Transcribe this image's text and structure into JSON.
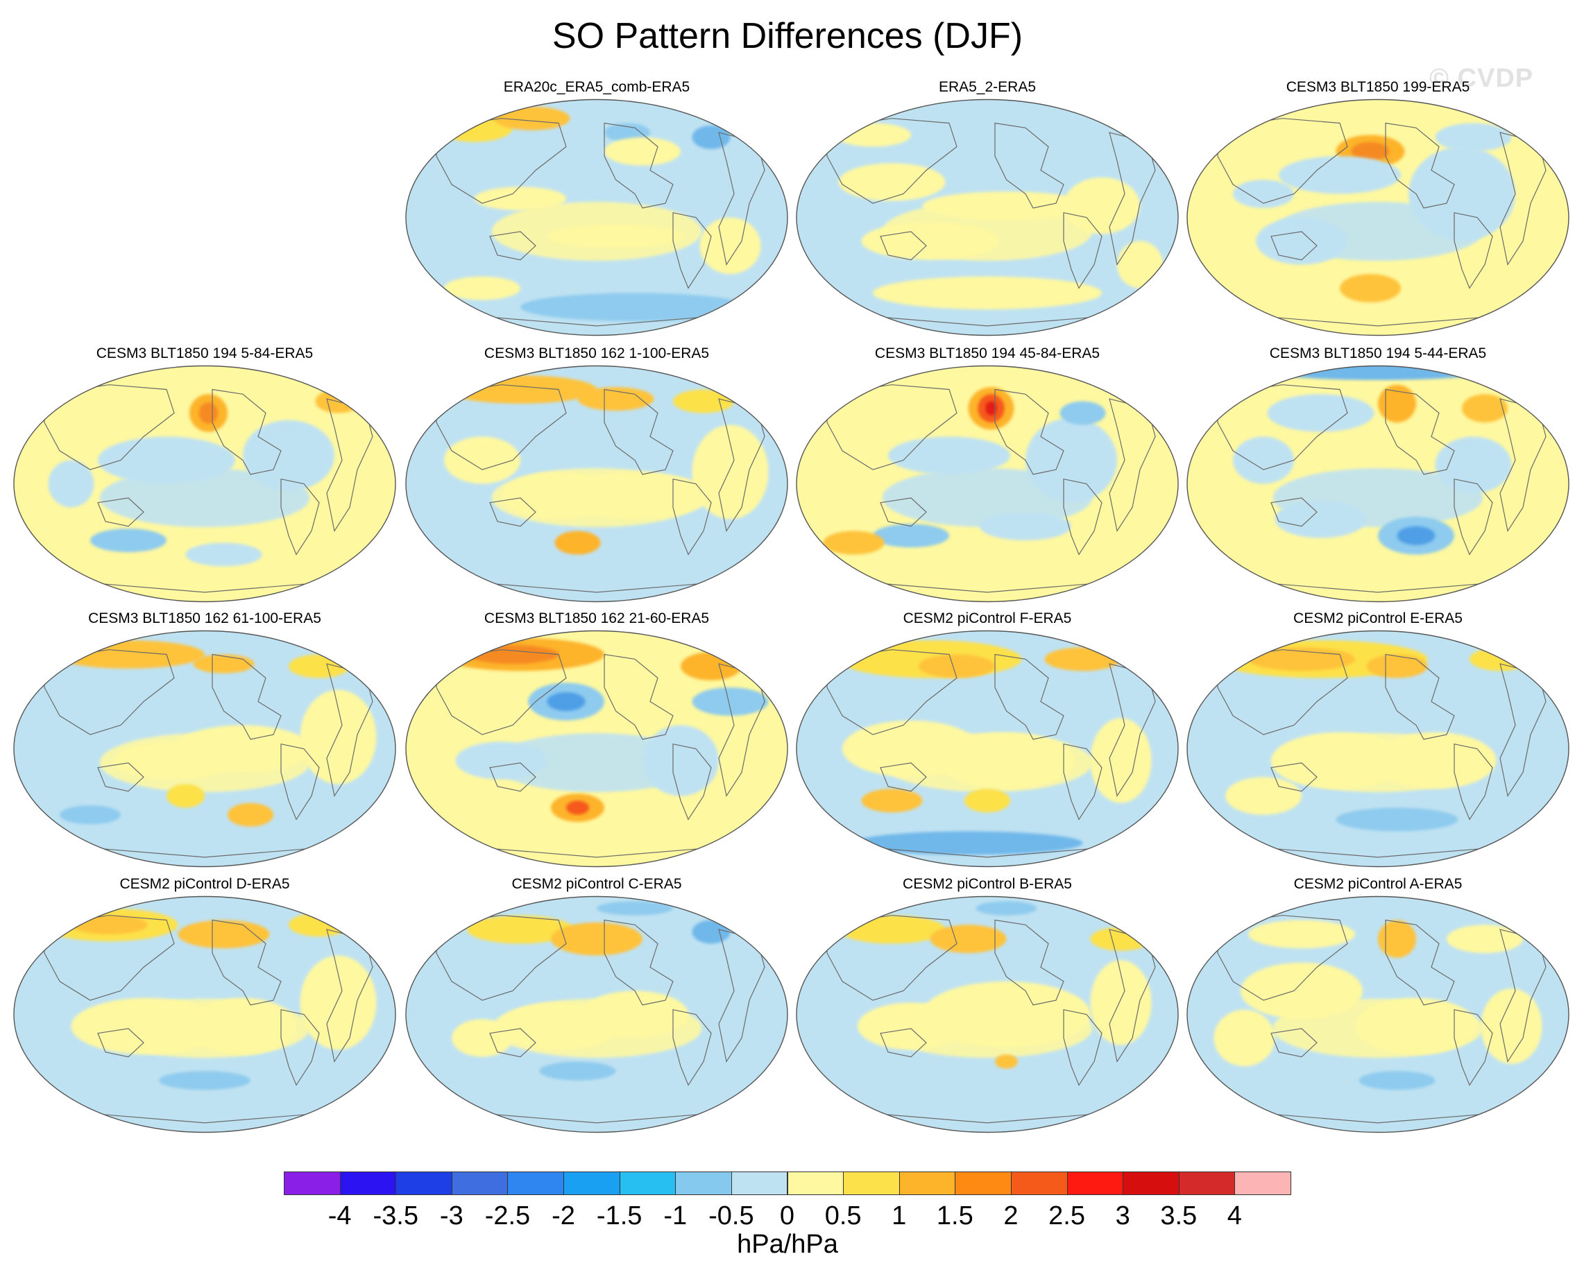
{
  "figure": {
    "title": "SO Pattern Differences (DJF)",
    "watermark": "© CVDP"
  },
  "colors": {
    "ocean_outline": "#555555",
    "land_outline": "#6b6b6b",
    "neutral_negative": "#bfe2f2",
    "neutral_positive": "#fef8a0"
  },
  "panels": [
    {
      "title": "ERA20c_ERA5_comb-ERA5",
      "base": "negative",
      "blobs": [
        [
          0.18,
          0.12,
          0.1,
          0.06,
          "#fde14a"
        ],
        [
          0.33,
          0.08,
          0.1,
          0.05,
          "#fec23a"
        ],
        [
          0.58,
          0.14,
          0.06,
          0.04,
          "#8ecbee"
        ],
        [
          0.8,
          0.16,
          0.05,
          0.05,
          "#6fb7ea"
        ],
        [
          0.3,
          0.42,
          0.12,
          0.05,
          "#fef8a0"
        ],
        [
          0.55,
          0.58,
          0.18,
          0.05,
          "#fef8a0"
        ],
        [
          0.85,
          0.62,
          0.08,
          0.12,
          "#fef8a0"
        ],
        [
          0.6,
          0.88,
          0.3,
          0.06,
          "#8ecbee"
        ],
        [
          0.2,
          0.8,
          0.1,
          0.05,
          "#fef8a0"
        ],
        [
          0.62,
          0.22,
          0.1,
          0.06,
          "#fef8a0"
        ]
      ]
    },
    {
      "title": "ERA5_2-ERA5",
      "base": "negative",
      "blobs": [
        [
          0.25,
          0.35,
          0.14,
          0.08,
          "#fef8a0"
        ],
        [
          0.55,
          0.45,
          0.22,
          0.06,
          "#fef8a0"
        ],
        [
          0.35,
          0.6,
          0.18,
          0.08,
          "#fef8a0"
        ],
        [
          0.8,
          0.45,
          0.1,
          0.12,
          "#fef8a0"
        ],
        [
          0.5,
          0.82,
          0.3,
          0.07,
          "#fef8a0"
        ],
        [
          0.2,
          0.15,
          0.1,
          0.05,
          "#fef8a0"
        ],
        [
          0.9,
          0.7,
          0.06,
          0.1,
          "#fef8a0"
        ]
      ]
    },
    {
      "title": "CESM3 BLT1850 199-ERA5",
      "base": "positive",
      "blobs": [
        [
          0.48,
          0.22,
          0.09,
          0.07,
          "#fdb32a"
        ],
        [
          0.48,
          0.22,
          0.05,
          0.04,
          "#f58a20"
        ],
        [
          0.4,
          0.32,
          0.16,
          0.08,
          "#bfe2f2"
        ],
        [
          0.72,
          0.4,
          0.14,
          0.2,
          "#bfe2f2"
        ],
        [
          0.3,
          0.6,
          0.12,
          0.1,
          "#bfe2f2"
        ],
        [
          0.48,
          0.8,
          0.08,
          0.06,
          "#fec23a"
        ],
        [
          0.75,
          0.16,
          0.1,
          0.06,
          "#bfe2f2"
        ],
        [
          0.2,
          0.4,
          0.08,
          0.06,
          "#bfe2f2"
        ]
      ]
    },
    {
      "title": "CESM3 BLT1850 194 5-84-ERA5",
      "base": "positive",
      "blobs": [
        [
          0.51,
          0.2,
          0.05,
          0.08,
          "#fdb32a"
        ],
        [
          0.51,
          0.2,
          0.025,
          0.045,
          "#f58a20"
        ],
        [
          0.4,
          0.4,
          0.18,
          0.1,
          "#bfe2f2"
        ],
        [
          0.72,
          0.38,
          0.12,
          0.15,
          "#bfe2f2"
        ],
        [
          0.3,
          0.74,
          0.1,
          0.05,
          "#8ecbee"
        ],
        [
          0.55,
          0.8,
          0.1,
          0.05,
          "#bfe2f2"
        ],
        [
          0.15,
          0.5,
          0.06,
          0.1,
          "#bfe2f2"
        ],
        [
          0.85,
          0.15,
          0.06,
          0.05,
          "#fec23a"
        ]
      ]
    },
    {
      "title": "CESM3 BLT1850 162 1-100-ERA5",
      "base": "negative",
      "blobs": [
        [
          0.3,
          0.1,
          0.2,
          0.06,
          "#fec23a"
        ],
        [
          0.55,
          0.14,
          0.1,
          0.05,
          "#fec23a"
        ],
        [
          0.78,
          0.15,
          0.08,
          0.05,
          "#fde14a"
        ],
        [
          0.4,
          0.55,
          0.15,
          0.1,
          "#fef8a0"
        ],
        [
          0.6,
          0.55,
          0.2,
          0.1,
          "#fef8a0"
        ],
        [
          0.45,
          0.75,
          0.06,
          0.05,
          "#fdb32a"
        ],
        [
          0.85,
          0.45,
          0.1,
          0.2,
          "#fef8a0"
        ],
        [
          0.2,
          0.4,
          0.1,
          0.1,
          "#fef8a0"
        ]
      ]
    },
    {
      "title": "CESM3 BLT1850 194 45-84-ERA5",
      "base": "positive",
      "blobs": [
        [
          0.51,
          0.18,
          0.06,
          0.09,
          "#fdb32a"
        ],
        [
          0.51,
          0.18,
          0.035,
          0.06,
          "#f55a1a"
        ],
        [
          0.51,
          0.18,
          0.015,
          0.03,
          "#e31b12"
        ],
        [
          0.4,
          0.38,
          0.16,
          0.08,
          "#bfe2f2"
        ],
        [
          0.72,
          0.4,
          0.12,
          0.18,
          "#bfe2f2"
        ],
        [
          0.3,
          0.72,
          0.1,
          0.05,
          "#8ecbee"
        ],
        [
          0.6,
          0.68,
          0.12,
          0.06,
          "#bfe2f2"
        ],
        [
          0.75,
          0.2,
          0.06,
          0.05,
          "#8ecbee"
        ],
        [
          0.15,
          0.75,
          0.08,
          0.05,
          "#fec23a"
        ]
      ]
    },
    {
      "title": "CESM3 BLT1850 194 5-44-ERA5",
      "base": "positive",
      "blobs": [
        [
          0.5,
          0.02,
          0.3,
          0.04,
          "#6fb7ea"
        ],
        [
          0.35,
          0.2,
          0.14,
          0.08,
          "#bfe2f2"
        ],
        [
          0.55,
          0.16,
          0.05,
          0.08,
          "#fdb32a"
        ],
        [
          0.78,
          0.18,
          0.06,
          0.06,
          "#fec23a"
        ],
        [
          0.6,
          0.72,
          0.1,
          0.08,
          "#8ecbee"
        ],
        [
          0.6,
          0.72,
          0.05,
          0.04,
          "#4f9fe6"
        ],
        [
          0.35,
          0.65,
          0.12,
          0.08,
          "#bfe2f2"
        ],
        [
          0.75,
          0.42,
          0.1,
          0.12,
          "#bfe2f2"
        ],
        [
          0.2,
          0.4,
          0.08,
          0.1,
          "#bfe2f2"
        ]
      ]
    },
    {
      "title": "CESM3 BLT1850 162 61-100-ERA5",
      "base": "negative",
      "blobs": [
        [
          0.3,
          0.1,
          0.2,
          0.06,
          "#fec23a"
        ],
        [
          0.55,
          0.14,
          0.08,
          0.04,
          "#fec23a"
        ],
        [
          0.8,
          0.15,
          0.08,
          0.05,
          "#fde14a"
        ],
        [
          0.42,
          0.55,
          0.16,
          0.08,
          "#fef8a0"
        ],
        [
          0.6,
          0.5,
          0.18,
          0.1,
          "#fef8a0"
        ],
        [
          0.45,
          0.7,
          0.05,
          0.05,
          "#fde14a"
        ],
        [
          0.62,
          0.78,
          0.06,
          0.05,
          "#fec23a"
        ],
        [
          0.2,
          0.78,
          0.08,
          0.04,
          "#8ecbee"
        ],
        [
          0.85,
          0.45,
          0.1,
          0.2,
          "#fef8a0"
        ]
      ]
    },
    {
      "title": "CESM3 BLT1850 162 21-60-ERA5",
      "base": "positive",
      "blobs": [
        [
          0.3,
          0.1,
          0.22,
          0.07,
          "#fdb32a"
        ],
        [
          0.28,
          0.1,
          0.12,
          0.04,
          "#f58a20"
        ],
        [
          0.42,
          0.3,
          0.1,
          0.08,
          "#8ecbee"
        ],
        [
          0.42,
          0.3,
          0.05,
          0.04,
          "#4f9fe6"
        ],
        [
          0.8,
          0.15,
          0.08,
          0.06,
          "#fdb32a"
        ],
        [
          0.85,
          0.3,
          0.1,
          0.06,
          "#8ecbee"
        ],
        [
          0.45,
          0.75,
          0.07,
          0.06,
          "#fdb32a"
        ],
        [
          0.45,
          0.75,
          0.03,
          0.03,
          "#f55a1a"
        ],
        [
          0.25,
          0.55,
          0.12,
          0.08,
          "#bfe2f2"
        ],
        [
          0.72,
          0.55,
          0.1,
          0.15,
          "#bfe2f2"
        ]
      ]
    },
    {
      "title": "CESM2 piControl F-ERA5",
      "base": "negative",
      "blobs": [
        [
          0.35,
          0.12,
          0.24,
          0.08,
          "#fde14a"
        ],
        [
          0.42,
          0.15,
          0.1,
          0.05,
          "#fec23a"
        ],
        [
          0.75,
          0.12,
          0.1,
          0.05,
          "#fec23a"
        ],
        [
          0.3,
          0.5,
          0.18,
          0.12,
          "#fef8a0"
        ],
        [
          0.55,
          0.55,
          0.18,
          0.12,
          "#fef8a0"
        ],
        [
          0.25,
          0.72,
          0.08,
          0.05,
          "#fec23a"
        ],
        [
          0.5,
          0.72,
          0.06,
          0.05,
          "#fde14a"
        ],
        [
          0.45,
          0.9,
          0.3,
          0.05,
          "#6fb7ea"
        ],
        [
          0.85,
          0.55,
          0.08,
          0.18,
          "#fef8a0"
        ]
      ]
    },
    {
      "title": "CESM2 piControl E-ERA5",
      "base": "negative",
      "blobs": [
        [
          0.35,
          0.12,
          0.28,
          0.08,
          "#fde14a"
        ],
        [
          0.3,
          0.12,
          0.14,
          0.05,
          "#fec23a"
        ],
        [
          0.55,
          0.15,
          0.08,
          0.05,
          "#fec23a"
        ],
        [
          0.82,
          0.12,
          0.08,
          0.05,
          "#fde14a"
        ],
        [
          0.4,
          0.55,
          0.18,
          0.12,
          "#fef8a0"
        ],
        [
          0.65,
          0.55,
          0.16,
          0.12,
          "#fef8a0"
        ],
        [
          0.55,
          0.8,
          0.16,
          0.05,
          "#8ecbee"
        ],
        [
          0.2,
          0.7,
          0.1,
          0.08,
          "#fef8a0"
        ]
      ]
    },
    {
      "title": "CESM2 piControl D-ERA5",
      "base": "negative",
      "blobs": [
        [
          0.25,
          0.12,
          0.18,
          0.07,
          "#fde14a"
        ],
        [
          0.25,
          0.12,
          0.1,
          0.04,
          "#fec23a"
        ],
        [
          0.55,
          0.16,
          0.12,
          0.06,
          "#fec23a"
        ],
        [
          0.8,
          0.12,
          0.08,
          0.05,
          "#fde14a"
        ],
        [
          0.35,
          0.55,
          0.2,
          0.12,
          "#fef8a0"
        ],
        [
          0.6,
          0.55,
          0.14,
          0.12,
          "#fef8a0"
        ],
        [
          0.5,
          0.78,
          0.12,
          0.04,
          "#8ecbee"
        ],
        [
          0.85,
          0.45,
          0.1,
          0.2,
          "#fef8a0"
        ]
      ]
    },
    {
      "title": "CESM2 piControl C-ERA5",
      "base": "negative",
      "blobs": [
        [
          0.3,
          0.14,
          0.14,
          0.06,
          "#fde14a"
        ],
        [
          0.5,
          0.18,
          0.12,
          0.07,
          "#fec23a"
        ],
        [
          0.6,
          0.05,
          0.1,
          0.03,
          "#8ecbee"
        ],
        [
          0.8,
          0.15,
          0.05,
          0.05,
          "#6fb7ea"
        ],
        [
          0.4,
          0.55,
          0.16,
          0.1,
          "#fef8a0"
        ],
        [
          0.6,
          0.5,
          0.14,
          0.1,
          "#fef8a0"
        ],
        [
          0.45,
          0.74,
          0.1,
          0.04,
          "#8ecbee"
        ],
        [
          0.2,
          0.6,
          0.08,
          0.08,
          "#fef8a0"
        ]
      ]
    },
    {
      "title": "CESM2 piControl B-ERA5",
      "base": "negative",
      "blobs": [
        [
          0.25,
          0.14,
          0.14,
          0.06,
          "#fde14a"
        ],
        [
          0.45,
          0.18,
          0.1,
          0.06,
          "#fec23a"
        ],
        [
          0.55,
          0.05,
          0.08,
          0.03,
          "#8ecbee"
        ],
        [
          0.85,
          0.18,
          0.08,
          0.05,
          "#fde14a"
        ],
        [
          0.55,
          0.5,
          0.22,
          0.14,
          "#fef8a0"
        ],
        [
          0.3,
          0.55,
          0.14,
          0.1,
          "#fef8a0"
        ],
        [
          0.55,
          0.7,
          0.03,
          0.03,
          "#fec23a"
        ],
        [
          0.85,
          0.45,
          0.08,
          0.18,
          "#fef8a0"
        ]
      ]
    },
    {
      "title": "CESM2 piControl A-ERA5",
      "base": "negative",
      "blobs": [
        [
          0.3,
          0.16,
          0.14,
          0.06,
          "#fef8a0"
        ],
        [
          0.55,
          0.18,
          0.05,
          0.08,
          "#fec23a"
        ],
        [
          0.78,
          0.18,
          0.1,
          0.06,
          "#fef8a0"
        ],
        [
          0.3,
          0.4,
          0.16,
          0.12,
          "#fef8a0"
        ],
        [
          0.6,
          0.55,
          0.16,
          0.12,
          "#fef8a0"
        ],
        [
          0.55,
          0.78,
          0.1,
          0.04,
          "#8ecbee"
        ],
        [
          0.15,
          0.6,
          0.08,
          0.12,
          "#fef8a0"
        ],
        [
          0.85,
          0.55,
          0.08,
          0.16,
          "#fef8a0"
        ]
      ]
    }
  ],
  "colorbar": {
    "units": "hPa/hPa",
    "tick_labels": [
      "-4",
      "-3.5",
      "-3",
      "-2.5",
      "-2",
      "-1.5",
      "-1",
      "-0.5",
      "0",
      "0.5",
      "1",
      "1.5",
      "2",
      "2.5",
      "3",
      "3.5",
      "4"
    ],
    "colors": [
      "#8a1fe8",
      "#2c14f2",
      "#1f3fe6",
      "#3f6ee0",
      "#2f86f0",
      "#1aa0f2",
      "#27bff2",
      "#86c9ee",
      "#bfe2f2",
      "#fef8a0",
      "#fde14a",
      "#fdb32a",
      "#fe8a14",
      "#f55a1a",
      "#fe1a10",
      "#d60e0e",
      "#d42a2a",
      "#fdb4b4"
    ]
  }
}
